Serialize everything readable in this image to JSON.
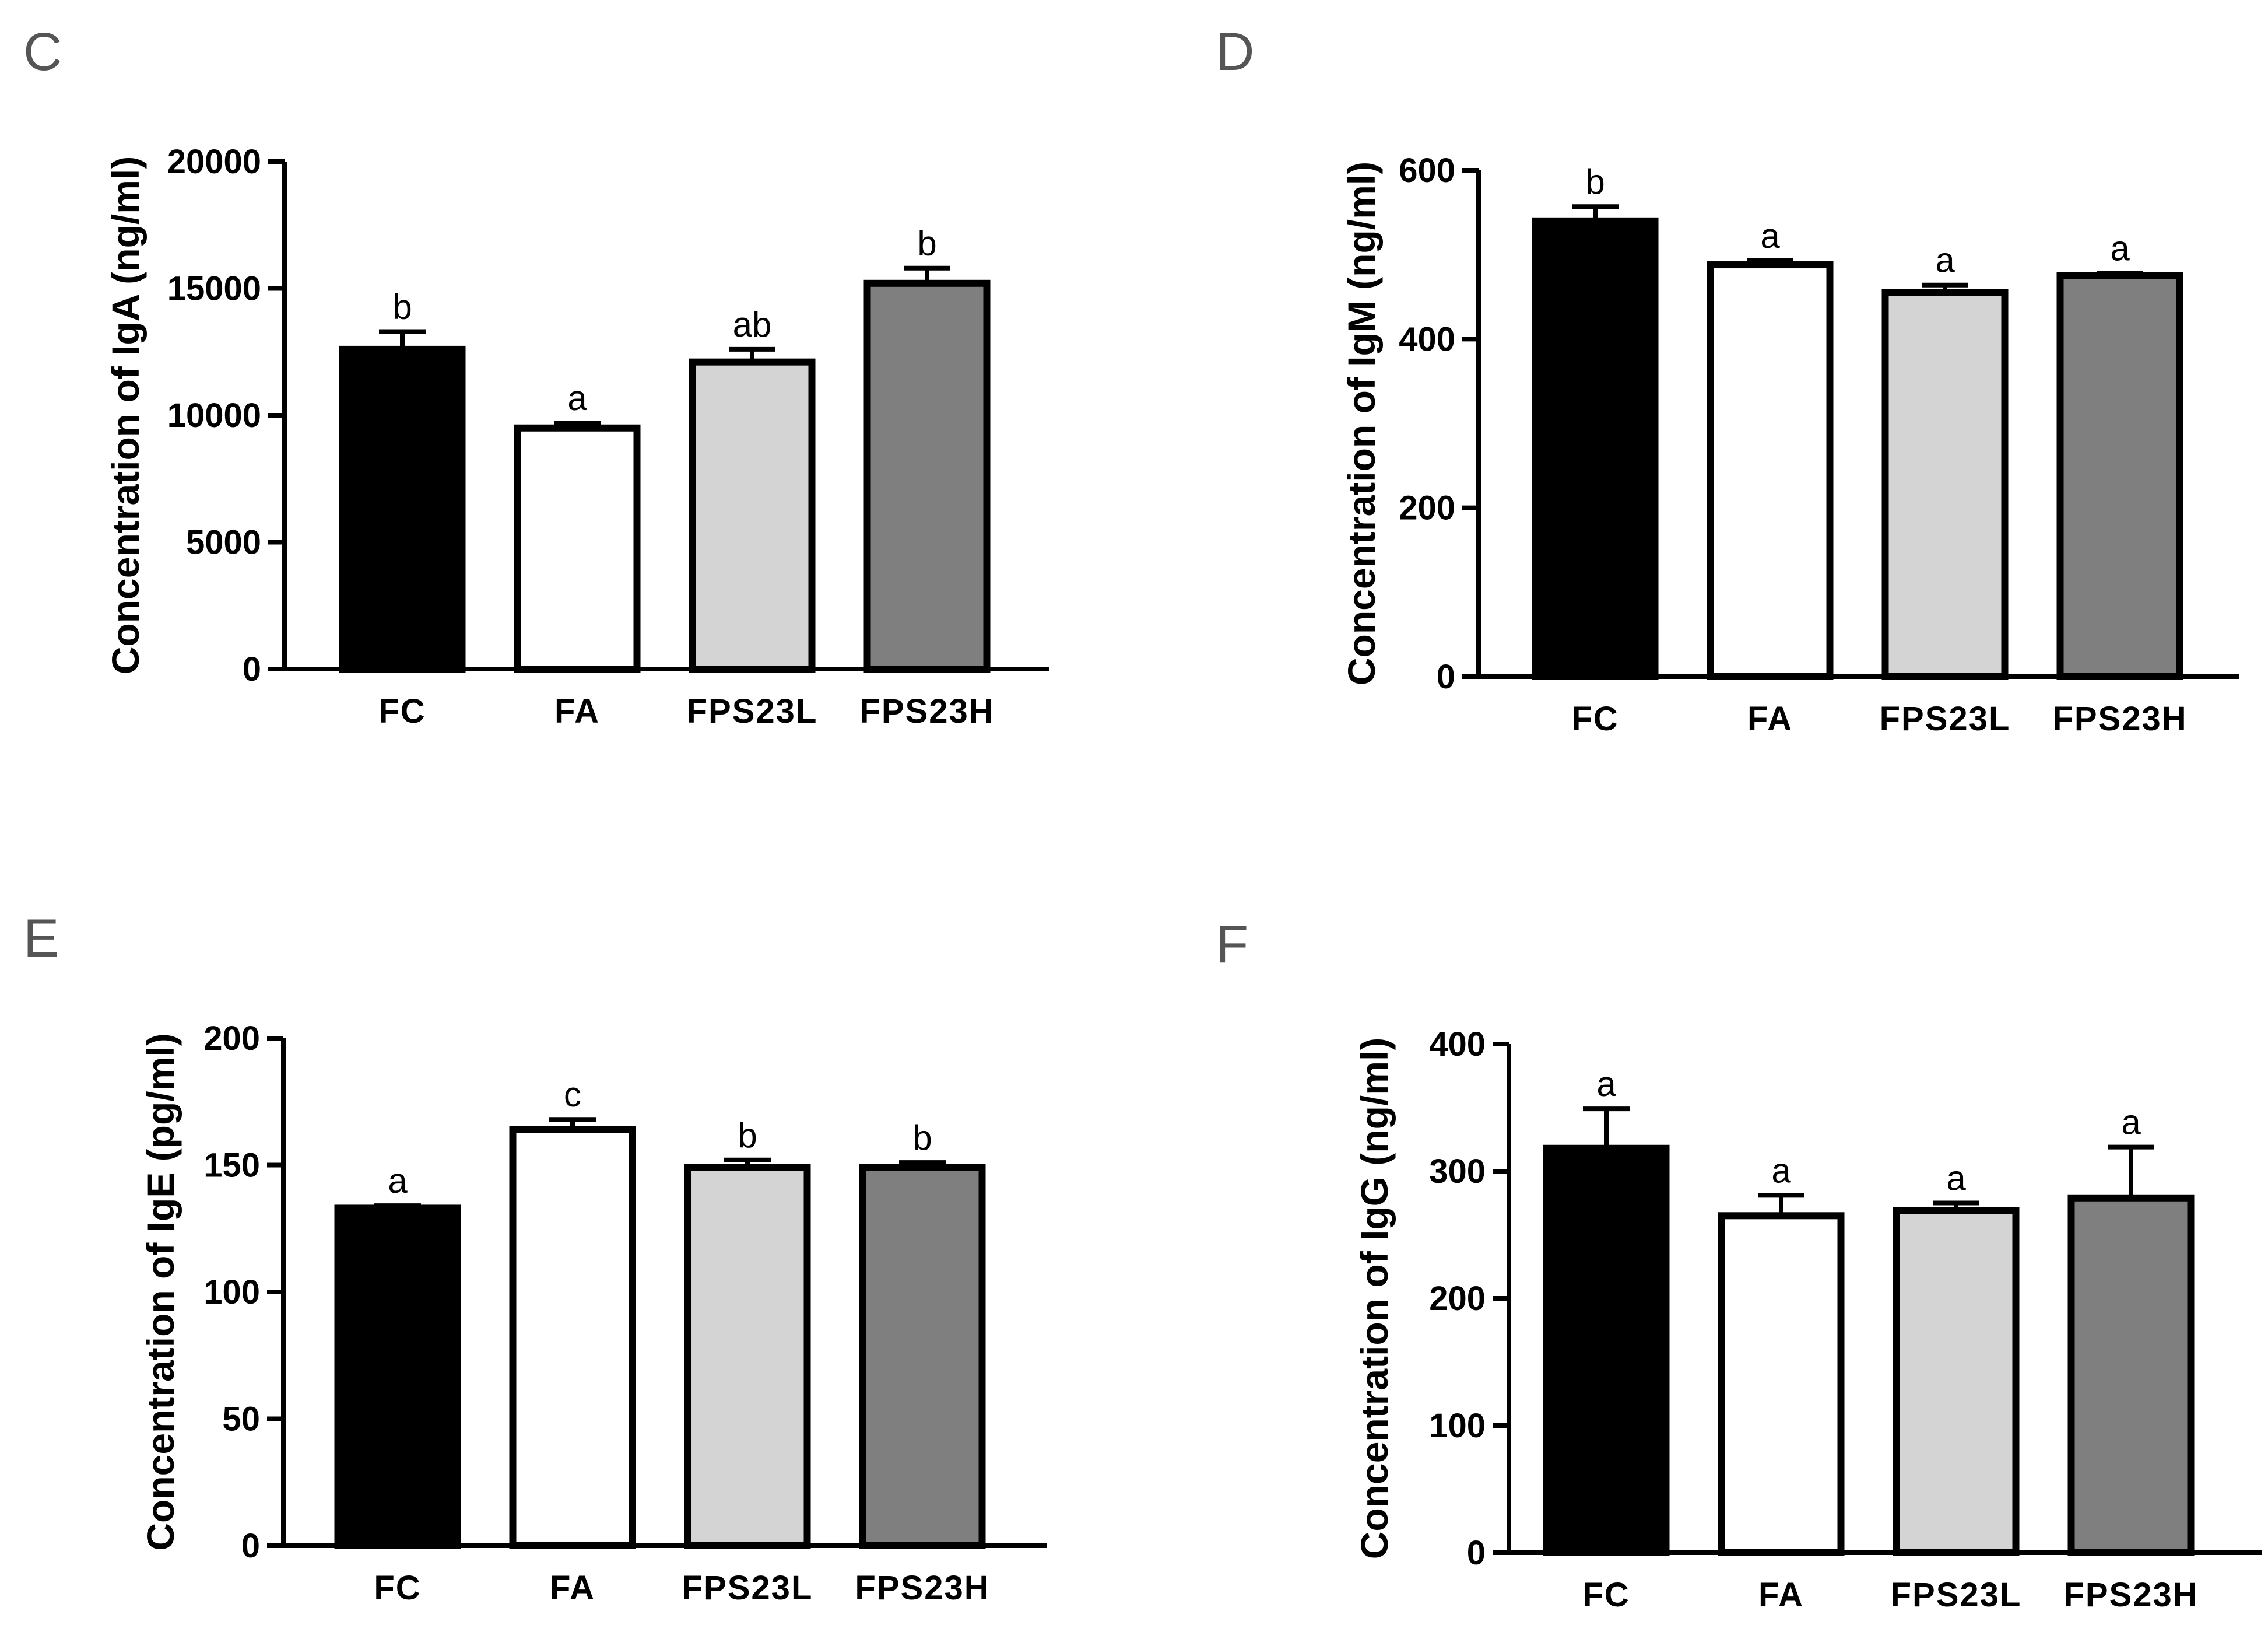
{
  "figure": {
    "colors": {
      "FC": "#000000",
      "FA": "#ffffff",
      "FPS23L": "#d4d4d4",
      "FPS23H": "#7f7f7f",
      "axis": "#000000"
    }
  },
  "chart_data": [
    {
      "type": "bar",
      "panel": "C",
      "title": "",
      "xlabel": "",
      "ylabel": "Concentration of IgA (ng/ml)",
      "categories": [
        "FC",
        "FA",
        "FPS23L",
        "FPS23H"
      ],
      "values": [
        12600,
        9500,
        12100,
        15200
      ],
      "errors": [
        700,
        200,
        500,
        600
      ],
      "significance": [
        "b",
        "a",
        "ab",
        "b"
      ],
      "ylim": [
        0,
        20000
      ],
      "yticks": [
        0,
        5000,
        10000,
        15000,
        20000
      ]
    },
    {
      "type": "bar",
      "panel": "D",
      "title": "",
      "xlabel": "",
      "ylabel": "Concentration of IgM (ng/ml)",
      "categories": [
        "FC",
        "FA",
        "FPS23L",
        "FPS23H"
      ],
      "values": [
        540,
        488,
        455,
        475
      ],
      "errors": [
        17,
        5,
        9,
        3
      ],
      "significance": [
        "b",
        "a",
        "a",
        "a"
      ],
      "ylim": [
        0,
        600
      ],
      "yticks": [
        0,
        200,
        400,
        600
      ]
    },
    {
      "type": "bar",
      "panel": "E",
      "title": "",
      "xlabel": "",
      "ylabel": "Concentration of IgE (pg/ml)",
      "categories": [
        "FC",
        "FA",
        "FPS23L",
        "FPS23H"
      ],
      "values": [
        133,
        164,
        149,
        149
      ],
      "errors": [
        1,
        4,
        3,
        2
      ],
      "significance": [
        "a",
        "c",
        "b",
        "b"
      ],
      "ylim": [
        0,
        200
      ],
      "yticks": [
        0,
        50,
        100,
        150,
        200
      ]
    },
    {
      "type": "bar",
      "panel": "F",
      "title": "",
      "xlabel": "",
      "ylabel": "Concentration of IgG (ng/ml)",
      "categories": [
        "FC",
        "FA",
        "FPS23L",
        "FPS23H"
      ],
      "values": [
        318,
        265,
        269,
        279
      ],
      "errors": [
        31,
        16,
        6,
        40
      ],
      "significance": [
        "a",
        "a",
        "a",
        "a"
      ],
      "ylim": [
        0,
        400
      ],
      "yticks": [
        0,
        100,
        200,
        300,
        400
      ]
    }
  ]
}
